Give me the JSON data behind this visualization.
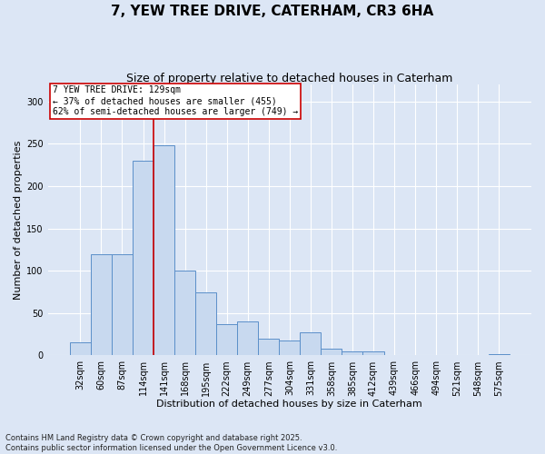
{
  "title": "7, YEW TREE DRIVE, CATERHAM, CR3 6HA",
  "subtitle": "Size of property relative to detached houses in Caterham",
  "xlabel": "Distribution of detached houses by size in Caterham",
  "ylabel": "Number of detached properties",
  "categories": [
    "32sqm",
    "60sqm",
    "87sqm",
    "114sqm",
    "141sqm",
    "168sqm",
    "195sqm",
    "222sqm",
    "249sqm",
    "277sqm",
    "304sqm",
    "331sqm",
    "358sqm",
    "385sqm",
    "412sqm",
    "439sqm",
    "466sqm",
    "494sqm",
    "521sqm",
    "548sqm",
    "575sqm"
  ],
  "values": [
    15,
    120,
    120,
    230,
    248,
    100,
    75,
    37,
    40,
    20,
    18,
    27,
    8,
    5,
    5,
    0,
    0,
    0,
    0,
    0,
    2
  ],
  "bar_color": "#c8d9ef",
  "bar_edge_color": "#5b8fc9",
  "vline_x": 3.5,
  "vline_color": "#cc0000",
  "annotation_line0": "7 YEW TREE DRIVE: 129sqm",
  "annotation_line1": "← 37% of detached houses are smaller (455)",
  "annotation_line2": "62% of semi-detached houses are larger (749) →",
  "annotation_box_facecolor": "#ffffff",
  "annotation_box_edgecolor": "#cc0000",
  "background_color": "#dce6f5",
  "plot_bg_color": "#dce6f5",
  "ylim": [
    0,
    320
  ],
  "yticks": [
    0,
    50,
    100,
    150,
    200,
    250,
    300
  ],
  "title_fontsize": 11,
  "subtitle_fontsize": 9,
  "xlabel_fontsize": 8,
  "ylabel_fontsize": 8,
  "tick_fontsize": 7,
  "annotation_fontsize": 7,
  "footer_fontsize": 6,
  "footer": "Contains HM Land Registry data © Crown copyright and database right 2025.\nContains public sector information licensed under the Open Government Licence v3.0."
}
